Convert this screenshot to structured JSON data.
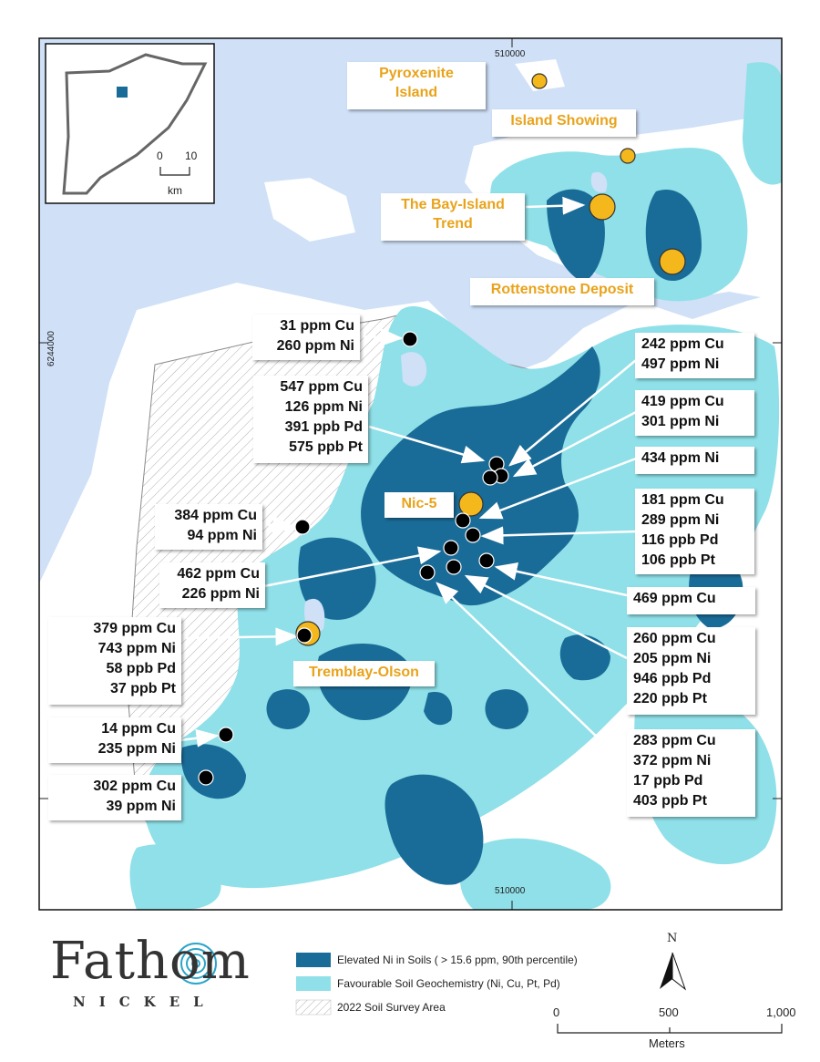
{
  "coordinates": {
    "top_easting": "510000",
    "bottom_easting": "510000",
    "left_northing": "6244000"
  },
  "inset": {
    "scale_zero": "0",
    "scale_ten": "10",
    "scale_unit": "km"
  },
  "deposits": [
    {
      "name_lines": [
        "Pyroxenite",
        "Island"
      ]
    },
    {
      "name_lines": [
        "Island Showing"
      ]
    },
    {
      "name_lines": [
        "The Bay-Island",
        "Trend"
      ]
    },
    {
      "name_lines": [
        "Rottenstone Deposit"
      ]
    },
    {
      "name_lines": [
        "Nic-5"
      ]
    },
    {
      "name_lines": [
        "Tremblay-Olson"
      ]
    }
  ],
  "samples": [
    {
      "lines": [
        "31 ppm Cu",
        "260 ppm Ni"
      ]
    },
    {
      "lines": [
        "547 ppm Cu",
        "126 ppm Ni",
        "391 ppb Pd",
        "575 ppb Pt"
      ]
    },
    {
      "lines": [
        "384 ppm Cu",
        "94 ppm Ni"
      ]
    },
    {
      "lines": [
        "462 ppm Cu",
        "226 ppm Ni"
      ]
    },
    {
      "lines": [
        "379 ppm Cu",
        "743 ppm Ni",
        "58 ppb Pd",
        "37 ppb Pt"
      ]
    },
    {
      "lines": [
        "14 ppm Cu",
        "235 ppm Ni"
      ]
    },
    {
      "lines": [
        "302 ppm Cu",
        "39 ppm Ni"
      ]
    },
    {
      "lines": [
        "242 ppm Cu",
        "497 ppm Ni"
      ]
    },
    {
      "lines": [
        "419 ppm Cu",
        "301 ppm Ni"
      ]
    },
    {
      "lines": [
        "434 ppm Ni"
      ]
    },
    {
      "lines": [
        "181 ppm Cu",
        "289 ppm Ni",
        "116 ppb Pd",
        "106 ppb Pt"
      ]
    },
    {
      "lines": [
        "469 ppm Cu"
      ]
    },
    {
      "lines": [
        "260 ppm Cu",
        "205 ppm Ni",
        "946 ppb Pd",
        "220 ppb Pt"
      ]
    },
    {
      "lines": [
        "283 ppm Cu",
        "372 ppm Ni",
        "17 ppb Pd",
        "403 ppb Pt"
      ]
    }
  ],
  "legend": {
    "items": [
      {
        "label": "Elevated Ni in Soils ( > 15.6 ppm, 90th percentile)",
        "color": "#1a6c98"
      },
      {
        "label": "Favourable Soil Geochemistry (Ni, Cu, Pt, Pd)",
        "color": "#8fe0e8"
      },
      {
        "label": "2022 Soil Survey Area",
        "color": "#ffffff"
      }
    ]
  },
  "logo": {
    "brand": "Fathom",
    "sub": "NICKEL"
  },
  "north_arrow": {
    "label": "N"
  },
  "scale_bar": {
    "ticks": [
      "0",
      "500",
      "1,000"
    ],
    "unit": "Meters"
  },
  "colors": {
    "water": "#cfe0f7",
    "land": "#ffffff",
    "dark_ni": "#1a6c98",
    "light_geochem": "#8fe0e8",
    "deposit": "#f5b81c",
    "sample": "#000000"
  }
}
